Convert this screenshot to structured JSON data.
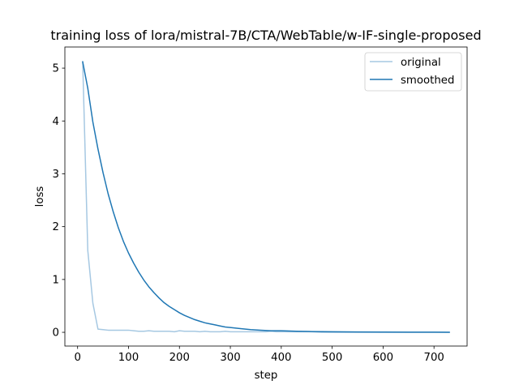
{
  "chart_data": {
    "type": "line",
    "title": "training loss of lora/mistral-7B/CTA/WebTable/w-IF-single-proposed",
    "xlabel": "step",
    "ylabel": "loss",
    "xlim": [
      -25,
      765
    ],
    "ylim": [
      -0.26,
      5.4
    ],
    "x_ticks": [
      0,
      100,
      200,
      300,
      400,
      500,
      600,
      700
    ],
    "y_ticks": [
      0,
      1,
      2,
      3,
      4,
      5
    ],
    "legend_position": "top-right",
    "series": [
      {
        "name": "original",
        "color": "#a6c8e2",
        "points": [
          [
            10,
            5.12
          ],
          [
            20,
            1.55
          ],
          [
            30,
            0.55
          ],
          [
            40,
            0.06
          ],
          [
            50,
            0.05
          ],
          [
            60,
            0.04
          ],
          [
            70,
            0.04
          ],
          [
            80,
            0.04
          ],
          [
            90,
            0.04
          ],
          [
            100,
            0.04
          ],
          [
            110,
            0.03
          ],
          [
            120,
            0.02
          ],
          [
            130,
            0.02
          ],
          [
            140,
            0.03
          ],
          [
            150,
            0.02
          ],
          [
            160,
            0.02
          ],
          [
            170,
            0.02
          ],
          [
            180,
            0.02
          ],
          [
            190,
            0.01
          ],
          [
            200,
            0.03
          ],
          [
            210,
            0.02
          ],
          [
            220,
            0.02
          ],
          [
            230,
            0.02
          ],
          [
            240,
            0.01
          ],
          [
            250,
            0.02
          ],
          [
            260,
            0.01
          ],
          [
            270,
            0.01
          ],
          [
            280,
            0.01
          ],
          [
            290,
            0.02
          ],
          [
            300,
            0.01
          ],
          [
            310,
            0.01
          ],
          [
            320,
            0.01
          ],
          [
            330,
            0.01
          ],
          [
            340,
            0.01
          ],
          [
            350,
            0.01
          ],
          [
            360,
            0.01
          ],
          [
            370,
            0.01
          ],
          [
            380,
            0.02
          ],
          [
            390,
            0.01
          ],
          [
            400,
            0.01
          ],
          [
            420,
            0.01
          ],
          [
            440,
            0.01
          ],
          [
            460,
            0.01
          ],
          [
            480,
            0.0
          ],
          [
            500,
            0.0
          ],
          [
            520,
            0.0
          ],
          [
            540,
            0.0
          ],
          [
            560,
            0.0
          ],
          [
            580,
            0.0
          ],
          [
            600,
            0.0
          ],
          [
            620,
            0.0
          ],
          [
            640,
            0.0
          ],
          [
            660,
            0.0
          ],
          [
            680,
            0.0
          ],
          [
            700,
            0.0
          ],
          [
            730,
            0.0
          ]
        ]
      },
      {
        "name": "smoothed",
        "color": "#1f77b4",
        "points": [
          [
            10,
            5.12
          ],
          [
            20,
            4.62
          ],
          [
            30,
            3.98
          ],
          [
            40,
            3.47
          ],
          [
            50,
            3.02
          ],
          [
            60,
            2.62
          ],
          [
            70,
            2.28
          ],
          [
            80,
            1.98
          ],
          [
            90,
            1.72
          ],
          [
            100,
            1.5
          ],
          [
            110,
            1.31
          ],
          [
            120,
            1.14
          ],
          [
            130,
            0.99
          ],
          [
            140,
            0.86
          ],
          [
            150,
            0.75
          ],
          [
            160,
            0.65
          ],
          [
            170,
            0.56
          ],
          [
            180,
            0.49
          ],
          [
            190,
            0.43
          ],
          [
            200,
            0.37
          ],
          [
            210,
            0.32
          ],
          [
            220,
            0.28
          ],
          [
            230,
            0.24
          ],
          [
            240,
            0.21
          ],
          [
            250,
            0.18
          ],
          [
            260,
            0.16
          ],
          [
            270,
            0.14
          ],
          [
            280,
            0.12
          ],
          [
            290,
            0.1
          ],
          [
            300,
            0.09
          ],
          [
            320,
            0.07
          ],
          [
            340,
            0.05
          ],
          [
            360,
            0.04
          ],
          [
            380,
            0.03
          ],
          [
            400,
            0.03
          ],
          [
            430,
            0.02
          ],
          [
            460,
            0.015
          ],
          [
            500,
            0.01
          ],
          [
            550,
            0.007
          ],
          [
            600,
            0.005
          ],
          [
            650,
            0.003
          ],
          [
            700,
            0.002
          ],
          [
            730,
            0.001
          ]
        ]
      }
    ]
  }
}
